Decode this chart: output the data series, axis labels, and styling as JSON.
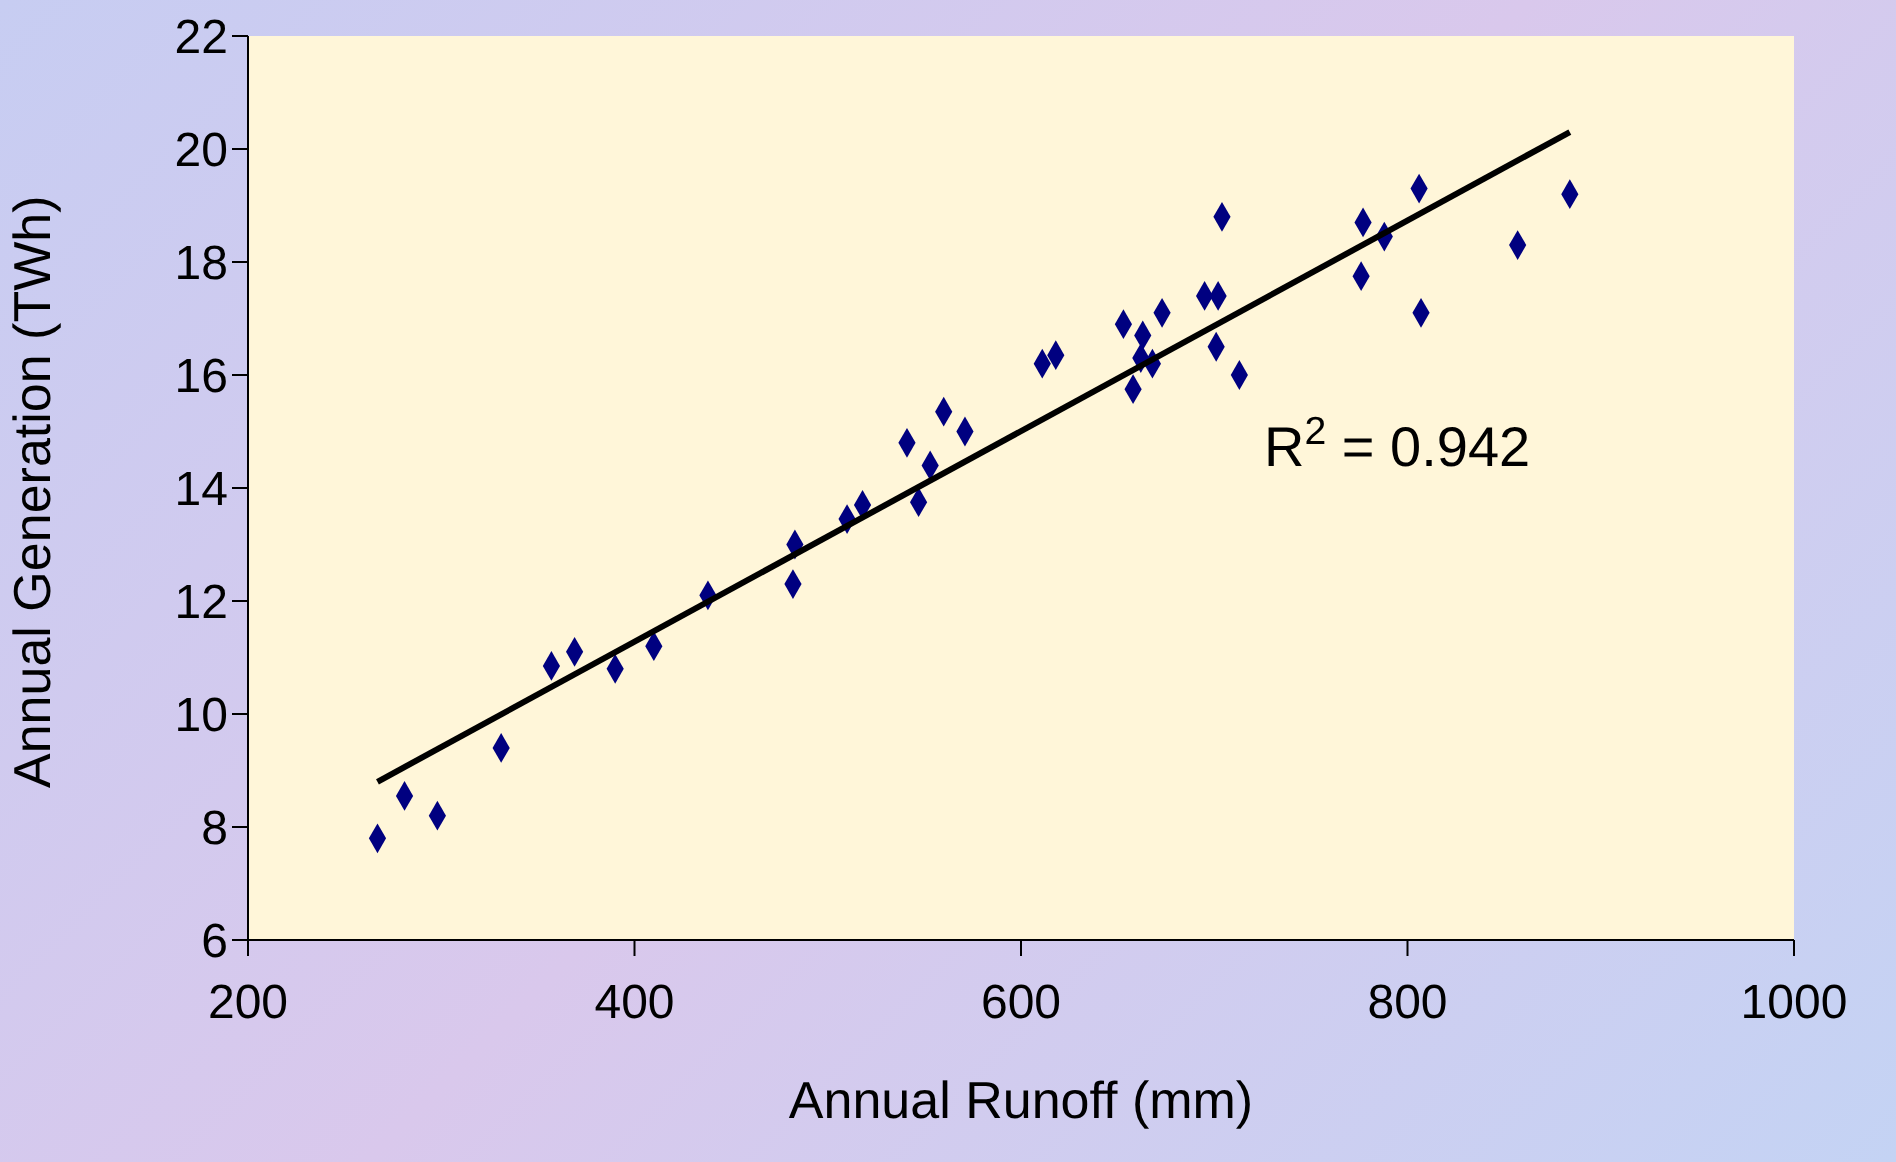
{
  "chart_data": {
    "type": "scatter",
    "xlabel": "Annual Runoff (mm)",
    "ylabel": "Annual Generation (TWh)",
    "xlim": [
      200,
      1000
    ],
    "xticks": [
      200,
      400,
      600,
      800,
      1000
    ],
    "ylim": [
      6,
      22
    ],
    "yticks": [
      6,
      8,
      10,
      12,
      14,
      16,
      18,
      20,
      22
    ],
    "annotations": [
      "R$^{2}$ = 0.942"
    ],
    "series": [
      {
        "marker": "diamond",
        "color": "#000080",
        "x": [
          267,
          281,
          298,
          331,
          357,
          369,
          390,
          410,
          438,
          482,
          483,
          510,
          518,
          541,
          547,
          553,
          560,
          571,
          611,
          618,
          653,
          658,
          662,
          663,
          668,
          673,
          695,
          701,
          702,
          704,
          713,
          776,
          777,
          788,
          806,
          807,
          857,
          884
        ],
        "values": [
          7.8,
          8.55,
          8.2,
          9.4,
          10.85,
          11.1,
          10.8,
          11.2,
          12.1,
          12.3,
          13.0,
          13.45,
          13.7,
          14.8,
          13.75,
          14.4,
          15.35,
          15.0,
          16.2,
          16.35,
          16.9,
          15.75,
          16.3,
          16.7,
          16.2,
          17.1,
          17.4,
          16.5,
          17.4,
          18.8,
          16.0,
          17.75,
          18.7,
          18.45,
          19.3,
          17.1,
          18.3,
          19.2
        ]
      },
      {
        "type": "line",
        "color": "#000000",
        "x": [
          267,
          884
        ],
        "values": [
          8.8,
          20.3
        ]
      }
    ]
  }
}
